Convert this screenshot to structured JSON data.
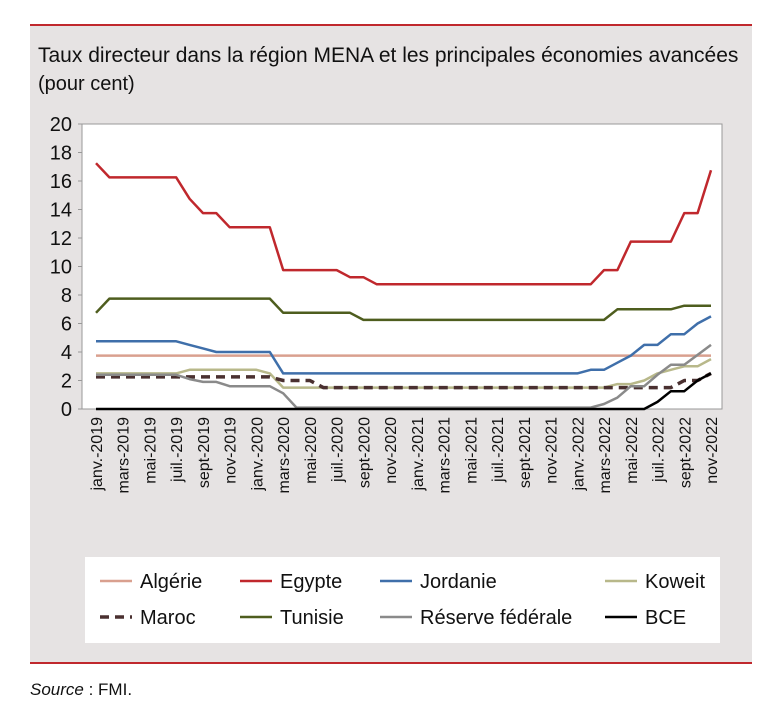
{
  "chart_data": {
    "type": "line",
    "title": "Taux directeur dans la région MENA et les principales économies avancées",
    "subtitle": "(pour cent)",
    "categories": [
      "janv.-2019",
      null,
      "mars-2019",
      null,
      "mai-2019",
      null,
      "juil.-2019",
      null,
      "sept-2019",
      null,
      "nov-2019",
      null,
      "janv.-2020",
      null,
      "mars-2020",
      null,
      "mai-2020",
      null,
      "juil.-2020",
      null,
      "sept-2020",
      null,
      "nov-2020",
      null,
      "janv.-2021",
      null,
      "mars-2021",
      null,
      "mai-2021",
      null,
      "juil.-2021",
      null,
      "sept-2021",
      null,
      "nov-2021",
      null,
      "janv.-2022",
      null,
      "mars-2022",
      null,
      "mai-2022",
      null,
      "juil.-2022",
      null,
      "sept-2022",
      null,
      "nov-2022"
    ],
    "ylim": [
      0,
      20
    ],
    "yticks": [
      0,
      2,
      4,
      6,
      8,
      10,
      12,
      14,
      16,
      18,
      20
    ],
    "series": [
      {
        "name": "Algérie",
        "color": "#d9a08f",
        "values": [
          3.75,
          3.75,
          3.75,
          3.75,
          3.75,
          3.75,
          3.75,
          3.75,
          3.75,
          3.75,
          3.75,
          3.75,
          3.75,
          3.75,
          3.75,
          3.75,
          3.75,
          3.75,
          3.75,
          3.75,
          3.75,
          3.75,
          3.75,
          3.75,
          3.75,
          3.75,
          3.75,
          3.75,
          3.75,
          3.75,
          3.75,
          3.75,
          3.75,
          3.75,
          3.75,
          3.75,
          3.75,
          3.75,
          3.75,
          3.75,
          3.75,
          3.75,
          3.75,
          3.75,
          3.75,
          3.75,
          3.75
        ]
      },
      {
        "name": "Egypte",
        "color": "#c0282d",
        "values": [
          17.25,
          16.25,
          16.25,
          16.25,
          16.25,
          16.25,
          16.25,
          14.75,
          13.75,
          13.75,
          12.75,
          12.75,
          12.75,
          12.75,
          9.75,
          9.75,
          9.75,
          9.75,
          9.75,
          9.25,
          9.25,
          8.75,
          8.75,
          8.75,
          8.75,
          8.75,
          8.75,
          8.75,
          8.75,
          8.75,
          8.75,
          8.75,
          8.75,
          8.75,
          8.75,
          8.75,
          8.75,
          8.75,
          9.75,
          9.75,
          11.75,
          11.75,
          11.75,
          11.75,
          13.75,
          13.75,
          16.75
        ]
      },
      {
        "name": "Jordanie",
        "color": "#3f6faa",
        "values": [
          4.75,
          4.75,
          4.75,
          4.75,
          4.75,
          4.75,
          4.75,
          4.5,
          4.25,
          4.0,
          4.0,
          4.0,
          4.0,
          4.0,
          2.5,
          2.5,
          2.5,
          2.5,
          2.5,
          2.5,
          2.5,
          2.5,
          2.5,
          2.5,
          2.5,
          2.5,
          2.5,
          2.5,
          2.5,
          2.5,
          2.5,
          2.5,
          2.5,
          2.5,
          2.5,
          2.5,
          2.5,
          2.75,
          2.75,
          3.25,
          3.75,
          4.5,
          4.5,
          5.25,
          5.25,
          6.0,
          6.5
        ]
      },
      {
        "name": "Koweit",
        "color": "#b8b88a",
        "values": [
          2.5,
          2.5,
          2.5,
          2.5,
          2.5,
          2.5,
          2.5,
          2.75,
          2.75,
          2.75,
          2.75,
          2.75,
          2.75,
          2.5,
          1.5,
          1.5,
          1.5,
          1.5,
          1.5,
          1.5,
          1.5,
          1.5,
          1.5,
          1.5,
          1.5,
          1.5,
          1.5,
          1.5,
          1.5,
          1.5,
          1.5,
          1.5,
          1.5,
          1.5,
          1.5,
          1.5,
          1.5,
          1.5,
          1.5,
          1.75,
          1.75,
          2.0,
          2.5,
          2.75,
          3.0,
          3.0,
          3.5
        ]
      },
      {
        "name": "Maroc",
        "color": "#4a3030",
        "dashed": true,
        "values": [
          2.25,
          2.25,
          2.25,
          2.25,
          2.25,
          2.25,
          2.25,
          2.25,
          2.25,
          2.25,
          2.25,
          2.25,
          2.25,
          2.25,
          2.0,
          2.0,
          2.0,
          1.5,
          1.5,
          1.5,
          1.5,
          1.5,
          1.5,
          1.5,
          1.5,
          1.5,
          1.5,
          1.5,
          1.5,
          1.5,
          1.5,
          1.5,
          1.5,
          1.5,
          1.5,
          1.5,
          1.5,
          1.5,
          1.5,
          1.5,
          1.5,
          1.5,
          1.5,
          1.5,
          2.0,
          2.0,
          2.5
        ]
      },
      {
        "name": "Tunisie",
        "color": "#4e5d1e",
        "values": [
          6.75,
          7.75,
          7.75,
          7.75,
          7.75,
          7.75,
          7.75,
          7.75,
          7.75,
          7.75,
          7.75,
          7.75,
          7.75,
          7.75,
          6.75,
          6.75,
          6.75,
          6.75,
          6.75,
          6.75,
          6.25,
          6.25,
          6.25,
          6.25,
          6.25,
          6.25,
          6.25,
          6.25,
          6.25,
          6.25,
          6.25,
          6.25,
          6.25,
          6.25,
          6.25,
          6.25,
          6.25,
          6.25,
          6.25,
          7.0,
          7.0,
          7.0,
          7.0,
          7.0,
          7.25,
          7.25,
          7.25
        ]
      },
      {
        "name": "Réserve fédérale",
        "color": "#8a8a8a",
        "values": [
          2.4,
          2.4,
          2.4,
          2.4,
          2.4,
          2.4,
          2.4,
          2.1,
          1.9,
          1.9,
          1.6,
          1.6,
          1.6,
          1.6,
          1.1,
          0.1,
          0.1,
          0.1,
          0.1,
          0.1,
          0.1,
          0.1,
          0.1,
          0.1,
          0.1,
          0.1,
          0.1,
          0.1,
          0.1,
          0.1,
          0.1,
          0.1,
          0.1,
          0.1,
          0.1,
          0.1,
          0.1,
          0.1,
          0.35,
          0.8,
          1.6,
          1.6,
          2.4,
          3.1,
          3.1,
          3.8,
          4.5
        ]
      },
      {
        "name": "BCE",
        "color": "#000000",
        "values": [
          0,
          0,
          0,
          0,
          0,
          0,
          0,
          0,
          0,
          0,
          0,
          0,
          0,
          0,
          0,
          0,
          0,
          0,
          0,
          0,
          0,
          0,
          0,
          0,
          0,
          0,
          0,
          0,
          0,
          0,
          0,
          0,
          0,
          0,
          0,
          0,
          0,
          0,
          0,
          0,
          0,
          0,
          0.5,
          1.25,
          1.25,
          2.0,
          2.5
        ]
      }
    ],
    "legend": "bottom",
    "source": {
      "label": "Source",
      "text": " : FMI."
    }
  }
}
